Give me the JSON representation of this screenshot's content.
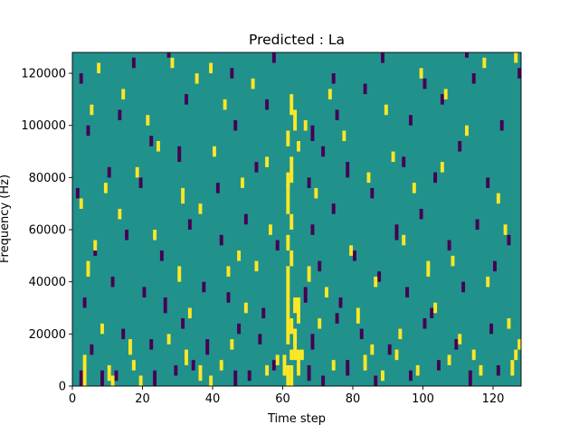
{
  "chart_data": {
    "type": "heatmap",
    "title": "Predicted : La",
    "xlabel": "Time step",
    "ylabel": "Frequency (Hz)",
    "xlim": [
      0,
      128
    ],
    "ylim": [
      0,
      128000
    ],
    "x_ticks": [
      0,
      20,
      40,
      60,
      80,
      100,
      120
    ],
    "y_ticks": [
      0,
      20000,
      40000,
      60000,
      80000,
      100000,
      120000
    ],
    "x_tick_labels": [
      "0",
      "20",
      "40",
      "60",
      "80",
      "100",
      "120"
    ],
    "y_tick_labels": [
      "0",
      "20000",
      "40000",
      "60000",
      "80000",
      "100000",
      "120000"
    ],
    "n_time_steps": 128,
    "n_frequency_bins": 64,
    "bin_height_hz": 2000,
    "background_value": 0,
    "colormap": {
      "-1": "#440154",
      "0": "#21918c",
      "1": "#fde725"
    },
    "cells": {
      "high": [
        [
          3,
          0,
          6
        ],
        [
          11,
          0,
          2
        ],
        [
          19,
          0,
          2
        ],
        [
          39,
          0,
          2
        ],
        [
          61,
          0,
          4
        ],
        [
          62,
          0,
          4
        ],
        [
          60,
          2,
          4
        ],
        [
          64,
          2,
          5
        ],
        [
          63,
          5,
          6
        ],
        [
          65,
          5,
          2
        ],
        [
          62,
          5,
          2
        ],
        [
          61,
          8,
          7
        ],
        [
          63,
          8,
          3
        ],
        [
          62,
          10,
          3
        ],
        [
          64,
          12,
          5
        ],
        [
          61,
          15,
          2
        ],
        [
          63,
          14,
          3
        ],
        [
          61,
          17,
          6
        ],
        [
          62,
          23,
          3
        ],
        [
          61,
          26,
          3
        ],
        [
          62,
          30,
          3
        ],
        [
          61,
          33,
          6
        ],
        [
          62,
          39,
          5
        ],
        [
          61,
          46,
          3
        ],
        [
          63,
          49,
          4
        ],
        [
          62,
          52,
          4
        ],
        [
          61,
          38,
          3
        ],
        [
          64,
          45,
          2
        ],
        [
          10,
          1,
          3
        ],
        [
          17,
          3,
          2
        ],
        [
          32,
          4,
          3
        ],
        [
          36,
          1,
          3
        ],
        [
          42,
          3,
          2
        ],
        [
          55,
          2,
          2
        ],
        [
          58,
          4,
          2
        ],
        [
          74,
          3,
          2
        ],
        [
          83,
          3,
          3
        ],
        [
          88,
          1,
          2
        ],
        [
          92,
          5,
          2
        ],
        [
          98,
          2,
          2
        ],
        [
          107,
          4,
          2
        ],
        [
          116,
          2,
          2
        ],
        [
          125,
          2,
          3
        ],
        [
          127,
          7,
          2
        ],
        [
          126,
          5,
          2
        ],
        [
          124,
          11,
          2
        ],
        [
          8,
          10,
          2
        ],
        [
          16,
          6,
          3
        ],
        [
          27,
          8,
          2
        ],
        [
          33,
          13,
          2
        ],
        [
          45,
          7,
          2
        ],
        [
          49,
          14,
          2
        ],
        [
          70,
          11,
          2
        ],
        [
          81,
          12,
          3
        ],
        [
          85,
          6,
          2
        ],
        [
          93,
          9,
          2
        ],
        [
          103,
          14,
          2
        ],
        [
          110,
          8,
          2
        ],
        [
          114,
          5,
          2
        ],
        [
          4,
          21,
          3
        ],
        [
          6,
          26,
          2
        ],
        [
          13,
          32,
          2
        ],
        [
          23,
          28,
          2
        ],
        [
          30,
          20,
          3
        ],
        [
          36,
          33,
          2
        ],
        [
          44,
          21,
          2
        ],
        [
          47,
          24,
          2
        ],
        [
          52,
          22,
          2
        ],
        [
          56,
          29,
          2
        ],
        [
          67,
          20,
          3
        ],
        [
          72,
          17,
          2
        ],
        [
          79,
          25,
          2
        ],
        [
          86,
          19,
          2
        ],
        [
          94,
          27,
          2
        ],
        [
          101,
          21,
          3
        ],
        [
          108,
          23,
          2
        ],
        [
          118,
          19,
          2
        ],
        [
          123,
          29,
          2
        ],
        [
          2,
          34,
          2
        ],
        [
          9,
          37,
          2
        ],
        [
          18,
          40,
          2
        ],
        [
          24,
          45,
          2
        ],
        [
          31,
          35,
          3
        ],
        [
          40,
          44,
          2
        ],
        [
          48,
          38,
          2
        ],
        [
          55,
          42,
          2
        ],
        [
          69,
          36,
          2
        ],
        [
          77,
          47,
          2
        ],
        [
          84,
          39,
          2
        ],
        [
          91,
          43,
          2
        ],
        [
          97,
          37,
          2
        ],
        [
          105,
          41,
          2
        ],
        [
          112,
          48,
          2
        ],
        [
          121,
          35,
          2
        ],
        [
          5,
          52,
          2
        ],
        [
          14,
          55,
          2
        ],
        [
          21,
          50,
          2
        ],
        [
          35,
          58,
          2
        ],
        [
          43,
          53,
          2
        ],
        [
          51,
          57,
          2
        ],
        [
          66,
          49,
          2
        ],
        [
          73,
          55,
          2
        ],
        [
          89,
          52,
          2
        ],
        [
          99,
          59,
          2
        ],
        [
          106,
          55,
          2
        ],
        [
          117,
          61,
          2
        ],
        [
          126,
          62,
          2
        ],
        [
          7,
          60,
          2
        ],
        [
          28,
          61,
          2
        ],
        [
          39,
          60,
          2
        ]
      ],
      "low": [
        [
          2,
          0,
          3
        ],
        [
          8,
          0,
          3
        ],
        [
          12,
          1,
          2
        ],
        [
          23,
          0,
          3
        ],
        [
          29,
          2,
          2
        ],
        [
          34,
          3,
          2
        ],
        [
          46,
          0,
          3
        ],
        [
          50,
          1,
          2
        ],
        [
          57,
          3,
          2
        ],
        [
          67,
          1,
          3
        ],
        [
          71,
          0,
          2
        ],
        [
          78,
          2,
          3
        ],
        [
          86,
          0,
          2
        ],
        [
          96,
          1,
          2
        ],
        [
          104,
          3,
          2
        ],
        [
          113,
          0,
          3
        ],
        [
          121,
          2,
          2
        ],
        [
          5,
          6,
          2
        ],
        [
          14,
          9,
          2
        ],
        [
          22,
          7,
          2
        ],
        [
          31,
          11,
          2
        ],
        [
          38,
          6,
          3
        ],
        [
          47,
          10,
          2
        ],
        [
          53,
          8,
          2
        ],
        [
          68,
          7,
          3
        ],
        [
          75,
          12,
          2
        ],
        [
          82,
          9,
          2
        ],
        [
          90,
          6,
          2
        ],
        [
          100,
          11,
          2
        ],
        [
          109,
          7,
          2
        ],
        [
          119,
          10,
          2
        ],
        [
          3,
          15,
          2
        ],
        [
          11,
          19,
          2
        ],
        [
          20,
          17,
          2
        ],
        [
          26,
          14,
          3
        ],
        [
          37,
          18,
          2
        ],
        [
          44,
          16,
          2
        ],
        [
          54,
          13,
          2
        ],
        [
          66,
          16,
          3
        ],
        [
          70,
          22,
          2
        ],
        [
          76,
          15,
          2
        ],
        [
          87,
          20,
          2
        ],
        [
          95,
          17,
          2
        ],
        [
          102,
          13,
          2
        ],
        [
          111,
          18,
          2
        ],
        [
          120,
          22,
          2
        ],
        [
          6,
          25,
          2
        ],
        [
          15,
          28,
          2
        ],
        [
          25,
          24,
          2
        ],
        [
          33,
          30,
          2
        ],
        [
          42,
          27,
          2
        ],
        [
          49,
          31,
          2
        ],
        [
          58,
          26,
          2
        ],
        [
          68,
          29,
          2
        ],
        [
          74,
          33,
          2
        ],
        [
          80,
          24,
          2
        ],
        [
          92,
          28,
          3
        ],
        [
          99,
          32,
          2
        ],
        [
          107,
          26,
          2
        ],
        [
          115,
          30,
          2
        ],
        [
          124,
          27,
          2
        ],
        [
          1,
          36,
          2
        ],
        [
          10,
          40,
          2
        ],
        [
          19,
          38,
          2
        ],
        [
          30,
          43,
          3
        ],
        [
          41,
          37,
          2
        ],
        [
          52,
          41,
          2
        ],
        [
          67,
          38,
          2
        ],
        [
          71,
          44,
          2
        ],
        [
          78,
          40,
          3
        ],
        [
          85,
          36,
          2
        ],
        [
          94,
          42,
          2
        ],
        [
          103,
          39,
          2
        ],
        [
          110,
          45,
          2
        ],
        [
          118,
          38,
          2
        ],
        [
          4,
          48,
          2
        ],
        [
          13,
          51,
          2
        ],
        [
          22,
          46,
          2
        ],
        [
          32,
          54,
          2
        ],
        [
          46,
          49,
          2
        ],
        [
          55,
          53,
          2
        ],
        [
          68,
          47,
          3
        ],
        [
          75,
          51,
          2
        ],
        [
          83,
          56,
          2
        ],
        [
          96,
          50,
          2
        ],
        [
          105,
          54,
          2
        ],
        [
          114,
          58,
          2
        ],
        [
          122,
          49,
          2
        ],
        [
          2,
          58,
          2
        ],
        [
          17,
          61,
          2
        ],
        [
          27,
          63,
          1
        ],
        [
          45,
          59,
          2
        ],
        [
          57,
          62,
          2
        ],
        [
          74,
          58,
          2
        ],
        [
          88,
          62,
          2
        ],
        [
          100,
          57,
          2
        ],
        [
          112,
          63,
          1
        ],
        [
          127,
          59,
          2
        ]
      ]
    }
  }
}
